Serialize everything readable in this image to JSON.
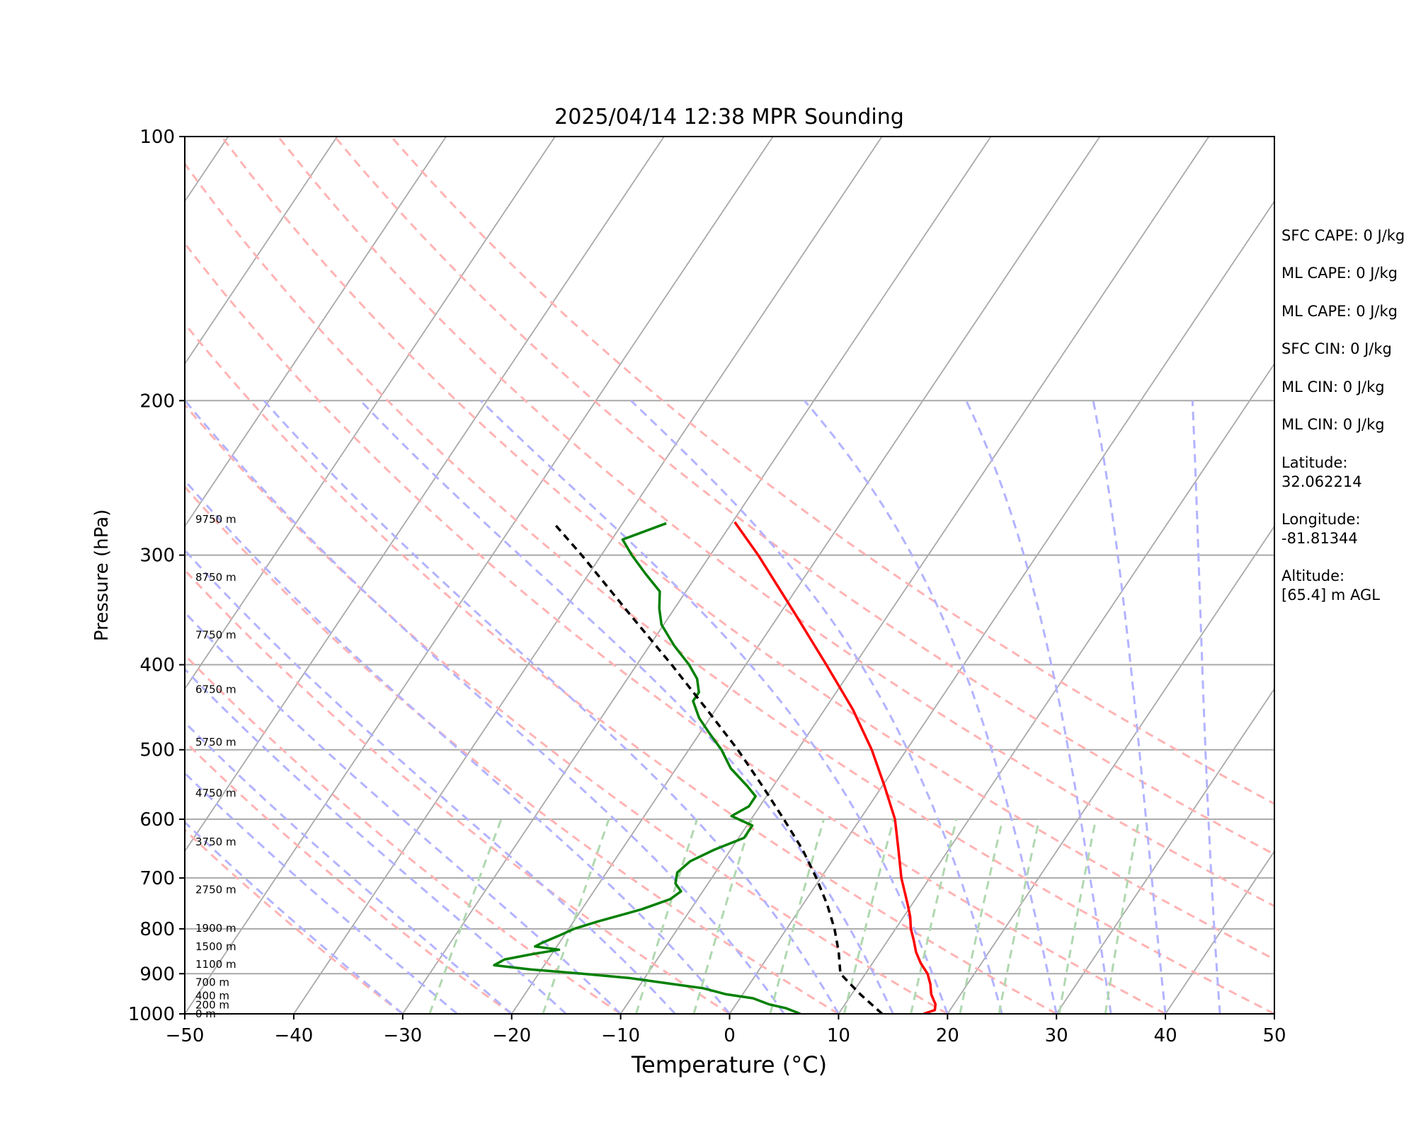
{
  "chart_data": {
    "type": "line",
    "diagram": "skew-T log-p",
    "title": "2025/04/14 12:38 MPR Sounding",
    "xlabel": "Temperature (°C)",
    "ylabel": "Pressure (hPa)",
    "xlim": [
      -50,
      50
    ],
    "ylim": [
      1000,
      100
    ],
    "y_scale": "log",
    "x_ticks": [
      "−50",
      "−40",
      "−30",
      "−20",
      "−10",
      "0",
      "10",
      "20",
      "30",
      "40",
      "50"
    ],
    "x_tick_values": [
      -50,
      -40,
      -30,
      -20,
      -10,
      0,
      10,
      20,
      30,
      40,
      50
    ],
    "y_ticks": [
      "100",
      "200",
      "300",
      "400",
      "500",
      "600",
      "700",
      "800",
      "900",
      "1000"
    ],
    "y_tick_values": [
      100,
      200,
      300,
      400,
      500,
      600,
      700,
      800,
      900,
      1000
    ],
    "grid": true,
    "series": [
      {
        "role": "temperature",
        "color": "#ff0000",
        "style": "solid",
        "points": [
          [
            1000,
            17.8
          ],
          [
            990,
            18.6
          ],
          [
            975,
            18.3
          ],
          [
            950,
            17.3
          ],
          [
            925,
            16.6
          ],
          [
            900,
            15.7
          ],
          [
            875,
            14.4
          ],
          [
            850,
            13.3
          ],
          [
            825,
            12.4
          ],
          [
            800,
            11.4
          ],
          [
            775,
            10.6
          ],
          [
            750,
            9.6
          ],
          [
            700,
            7.4
          ],
          [
            650,
            5.4
          ],
          [
            600,
            3.2
          ],
          [
            550,
            0.2
          ],
          [
            500,
            -3.2
          ],
          [
            450,
            -7.4
          ],
          [
            400,
            -12.6
          ],
          [
            350,
            -18.6
          ],
          [
            300,
            -25.6
          ],
          [
            275,
            -29.8
          ]
        ]
      },
      {
        "role": "dewpoint",
        "color": "#008000",
        "style": "solid",
        "points": [
          [
            1000,
            6.5
          ],
          [
            985,
            4.8
          ],
          [
            975,
            3.0
          ],
          [
            960,
            1.2
          ],
          [
            950,
            -1.5
          ],
          [
            935,
            -4.0
          ],
          [
            925,
            -7.0
          ],
          [
            910,
            -11.5
          ],
          [
            900,
            -16.0
          ],
          [
            890,
            -21.0
          ],
          [
            880,
            -24.6
          ],
          [
            867,
            -24.0
          ],
          [
            855,
            -21.8
          ],
          [
            845,
            -19.6
          ],
          [
            838,
            -22.0
          ],
          [
            830,
            -21.6
          ],
          [
            815,
            -20.5
          ],
          [
            800,
            -19.5
          ],
          [
            785,
            -17.8
          ],
          [
            760,
            -14.5
          ],
          [
            740,
            -12.5
          ],
          [
            725,
            -12.0
          ],
          [
            710,
            -13.0
          ],
          [
            690,
            -13.5
          ],
          [
            670,
            -13.0
          ],
          [
            650,
            -11.5
          ],
          [
            630,
            -9.5
          ],
          [
            610,
            -9.5
          ],
          [
            595,
            -12.0
          ],
          [
            580,
            -11.0
          ],
          [
            565,
            -11.0
          ],
          [
            550,
            -12.4
          ],
          [
            525,
            -15.0
          ],
          [
            500,
            -17.0
          ],
          [
            480,
            -19.0
          ],
          [
            460,
            -21.0
          ],
          [
            440,
            -22.6
          ],
          [
            430,
            -22.6
          ],
          [
            415,
            -23.6
          ],
          [
            400,
            -25.2
          ],
          [
            380,
            -27.8
          ],
          [
            360,
            -30.2
          ],
          [
            345,
            -31.4
          ],
          [
            330,
            -32.4
          ],
          [
            315,
            -34.8
          ],
          [
            300,
            -37.2
          ],
          [
            288,
            -39.0
          ],
          [
            276,
            -36.0
          ]
        ]
      },
      {
        "role": "parcel profile",
        "color": "#000000",
        "style": "dashed",
        "points": [
          [
            1000,
            14.0
          ],
          [
            950,
            10.8
          ],
          [
            900,
            7.7
          ],
          [
            850,
            6.2
          ],
          [
            800,
            4.4
          ],
          [
            750,
            2.2
          ],
          [
            700,
            -0.4
          ],
          [
            650,
            -3.4
          ],
          [
            600,
            -7.0
          ],
          [
            550,
            -11.0
          ],
          [
            500,
            -15.5
          ],
          [
            450,
            -20.8
          ],
          [
            400,
            -26.8
          ],
          [
            350,
            -33.8
          ],
          [
            300,
            -41.8
          ],
          [
            275,
            -46.5
          ]
        ]
      }
    ],
    "height_labels": [
      {
        "text": "0 m",
        "p": 1000
      },
      {
        "text": "200 m",
        "p": 977
      },
      {
        "text": "400 m",
        "p": 954
      },
      {
        "text": "700 m",
        "p": 921
      },
      {
        "text": "1100 m",
        "p": 878
      },
      {
        "text": "1500 m",
        "p": 838
      },
      {
        "text": "1900 m",
        "p": 799
      },
      {
        "text": "2750 m",
        "p": 722
      },
      {
        "text": "3750 m",
        "p": 637
      },
      {
        "text": "4750 m",
        "p": 560
      },
      {
        "text": "5750 m",
        "p": 490
      },
      {
        "text": "6750 m",
        "p": 427
      },
      {
        "text": "7750 m",
        "p": 370
      },
      {
        "text": "8750 m",
        "p": 318
      },
      {
        "text": "9750 m",
        "p": 273
      }
    ],
    "reference_lines": {
      "isotherm_color": "#a9a9a9",
      "isobar_color": "#a9a9a9",
      "dry_adiabat_color": "#ffb3b3",
      "moist_adiabat_color": "#b3b3ff",
      "mixing_ratio_color": "#b0d8b0"
    }
  },
  "info": {
    "sfc_cape": "SFC CAPE: 0 J/kg",
    "ml_cape_1": "ML CAPE: 0 J/kg",
    "ml_cape_2": "ML CAPE: 0 J/kg",
    "sfc_cin": "SFC CIN: 0 J/kg",
    "ml_cin_1": "ML CIN: 0 J/kg",
    "ml_cin_2": "ML CIN: 0 J/kg",
    "latitude_label": "Latitude:",
    "latitude_value": "32.062214",
    "longitude_label": "Longitude:",
    "longitude_value": "-81.81344",
    "altitude_label": "Altitude:",
    "altitude_value": "[65.4] m AGL"
  }
}
